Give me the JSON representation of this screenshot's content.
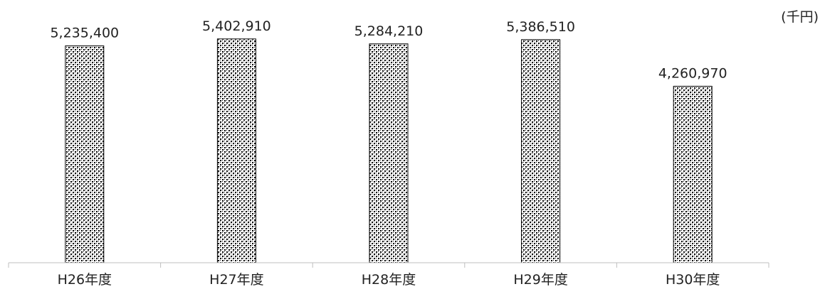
{
  "chart_data": {
    "type": "bar",
    "unit": "(千円)",
    "categories": [
      "H26年度",
      "H27年度",
      "H28年度",
      "H29年度",
      "H30年度"
    ],
    "values": [
      5235400,
      5402910,
      5284210,
      5386510,
      4260970
    ],
    "value_labels": [
      "5,235,400",
      "5,402,910",
      "5,284,210",
      "5,386,510",
      "4,260,970"
    ],
    "ylim": [
      0,
      6000000
    ],
    "grid": false,
    "legend": "none",
    "bar_fill_pattern": "checkered-dot",
    "colors": {
      "bar_stroke": "#000000",
      "bar_pattern_dark": "#000000",
      "bar_pattern_light": "#ffffff",
      "axis": "#bfbfbf",
      "text": "#222222"
    }
  }
}
